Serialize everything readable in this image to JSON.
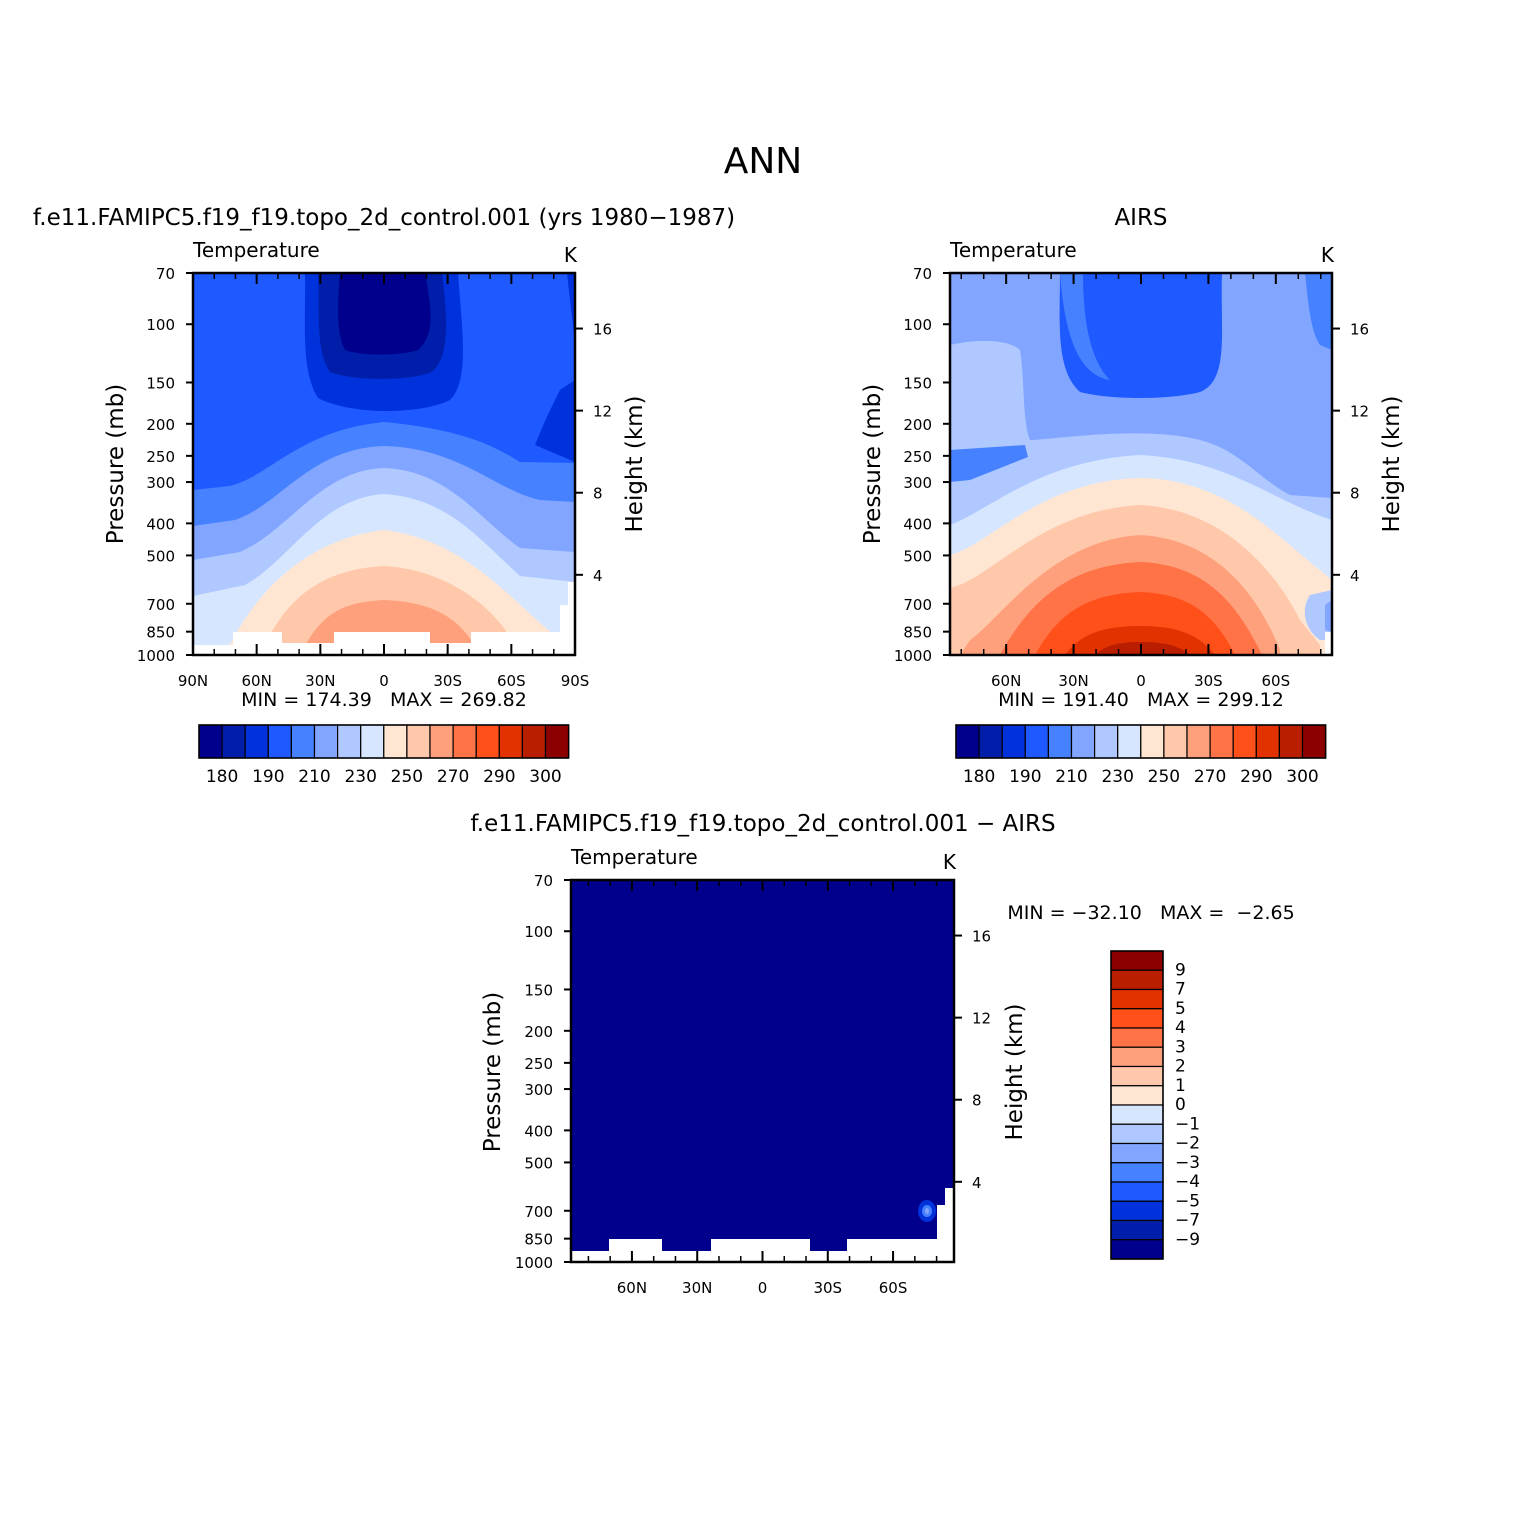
{
  "page_title": "ANN",
  "chart_data": [
    {
      "type": "heatmap",
      "title": "f.e11.FAMIPC5.f19_f19.topo_2d_control.001 (yrs 1980−1987)",
      "variable": "Temperature",
      "units": "K",
      "ylabel": "Pressure (mb)",
      "y2label": "Height (km)",
      "xticks": [
        "90N",
        "60N",
        "30N",
        "0",
        "30S",
        "60S",
        "90S"
      ],
      "yticks": [
        "70",
        "100",
        "150",
        "200",
        "250",
        "300",
        "400",
        "500",
        "700",
        "850",
        "1000"
      ],
      "y2ticks": [
        "16",
        "12",
        "8",
        "4"
      ],
      "min_max_text": "MIN = 174.39   MAX = 269.82",
      "min": 174.39,
      "max": 269.82,
      "colorbar_labels": [
        "180",
        "190",
        "210",
        "230",
        "250",
        "270",
        "290",
        "300"
      ],
      "colorbar_levels": [
        180,
        185,
        190,
        200,
        210,
        220,
        230,
        240,
        250,
        260,
        270,
        280,
        290,
        295,
        300
      ],
      "colors": [
        "#00008c",
        "#001eaa",
        "#0032dc",
        "#1e5aff",
        "#4682ff",
        "#82a5ff",
        "#afc8ff",
        "#d7e6ff",
        "#ffe6d2",
        "#ffc8aa",
        "#ffa07d",
        "#ff7346",
        "#ff5019",
        "#e13200",
        "#b91e00",
        "#8c0000"
      ]
    },
    {
      "type": "heatmap",
      "title": "AIRS",
      "variable": "Temperature",
      "units": "K",
      "ylabel": "Pressure (mb)",
      "y2label": "Height (km)",
      "xticks": [
        "60N",
        "30N",
        "0",
        "30S",
        "60S"
      ],
      "yticks": [
        "70",
        "100",
        "150",
        "200",
        "250",
        "300",
        "400",
        "500",
        "700",
        "850",
        "1000"
      ],
      "y2ticks": [
        "16",
        "12",
        "8",
        "4"
      ],
      "min_max_text": "MIN = 191.40   MAX = 299.12",
      "min": 191.4,
      "max": 299.12,
      "colorbar_labels": [
        "180",
        "190",
        "210",
        "230",
        "250",
        "270",
        "290",
        "300"
      ],
      "colorbar_levels": [
        180,
        185,
        190,
        200,
        210,
        220,
        230,
        240,
        250,
        260,
        270,
        280,
        290,
        295,
        300
      ],
      "colors": [
        "#00008c",
        "#001eaa",
        "#0032dc",
        "#1e5aff",
        "#4682ff",
        "#82a5ff",
        "#afc8ff",
        "#d7e6ff",
        "#ffe6d2",
        "#ffc8aa",
        "#ffa07d",
        "#ff7346",
        "#ff5019",
        "#e13200",
        "#b91e00",
        "#8c0000"
      ]
    },
    {
      "type": "heatmap",
      "title": "f.e11.FAMIPC5.f19_f19.topo_2d_control.001 − AIRS",
      "variable": "Temperature",
      "units": "K",
      "ylabel": "Pressure (mb)",
      "y2label": "Height (km)",
      "xticks": [
        "60N",
        "30N",
        "0",
        "30S",
        "60S"
      ],
      "yticks": [
        "70",
        "100",
        "150",
        "200",
        "250",
        "300",
        "400",
        "500",
        "700",
        "850",
        "1000"
      ],
      "y2ticks": [
        "16",
        "12",
        "8",
        "4"
      ],
      "min_max_text": "MIN = −32.10   MAX =  −2.65",
      "min": -32.1,
      "max": -2.65,
      "colorbar_labels": [
        "9",
        "7",
        "5",
        "4",
        "3",
        "2",
        "1",
        "0",
        "−1",
        "−2",
        "−3",
        "−4",
        "−5",
        "−7",
        "−9"
      ],
      "colorbar_levels": [
        -9,
        -7,
        -5,
        -4,
        -3,
        -2,
        -1,
        0,
        1,
        2,
        3,
        4,
        5,
        7,
        9
      ],
      "colors": [
        "#00008c",
        "#001eaa",
        "#0032dc",
        "#1e5aff",
        "#4682ff",
        "#82a5ff",
        "#afc8ff",
        "#d7e6ff",
        "#ffe6d2",
        "#ffc8aa",
        "#ffa07d",
        "#ff7346",
        "#ff5019",
        "#e13200",
        "#b91e00",
        "#8c0000"
      ]
    }
  ]
}
